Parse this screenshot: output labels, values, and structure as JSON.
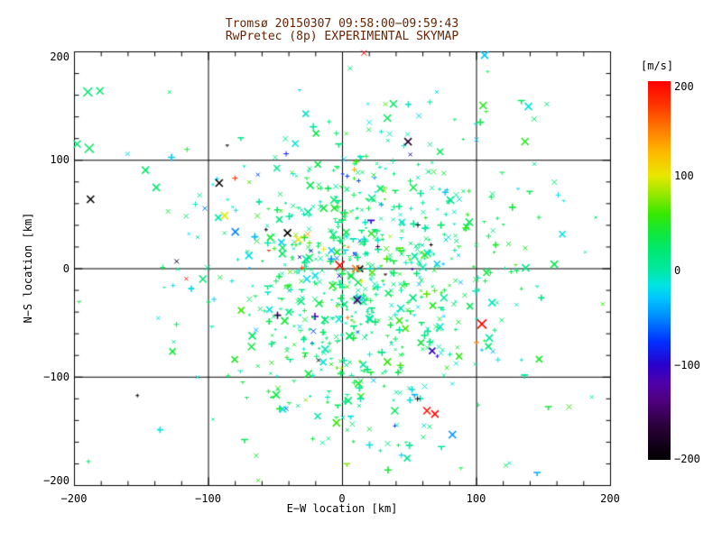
{
  "chart_data": {
    "type": "scatter",
    "title": "Tromsø 20150307 09:58:00−09:59:43",
    "subtitle": "RwPretec (8p) EXPERIMENTAL SKYMAP",
    "title_color": "#662505",
    "xlabel": "E−W location [km]",
    "ylabel": "N−S location [km]",
    "xlim": [
      -200,
      200
    ],
    "ylim": [
      -200,
      200
    ],
    "xticks": [
      -200,
      -100,
      0,
      100,
      200
    ],
    "yticks": [
      -200,
      -100,
      0,
      100,
      200
    ],
    "minor_tick_step_km": 20,
    "gridlines_km": [
      -100,
      0,
      100
    ],
    "grid": "on",
    "marker": "x",
    "colorbar": {
      "label": "[m/s]",
      "min": -200,
      "max": 200,
      "ticks": [
        200,
        100,
        0,
        -100,
        -200
      ],
      "position": "right"
    },
    "colormap_stops": [
      [
        -200,
        "#000000"
      ],
      [
        -165,
        "#2a0038"
      ],
      [
        -140,
        "#4c0078"
      ],
      [
        -120,
        "#5000a8"
      ],
      [
        -100,
        "#2a00cc"
      ],
      [
        -75,
        "#0030ff"
      ],
      [
        -50,
        "#0088ff"
      ],
      [
        -30,
        "#00c4ff"
      ],
      [
        -15,
        "#00e4e0"
      ],
      [
        0,
        "#00e8a4"
      ],
      [
        20,
        "#00e874"
      ],
      [
        40,
        "#10e83c"
      ],
      [
        60,
        "#38e800"
      ],
      [
        80,
        "#94e800"
      ],
      [
        100,
        "#e8e800"
      ],
      [
        125,
        "#ffb800"
      ],
      [
        150,
        "#ff7800"
      ],
      [
        175,
        "#ff3400"
      ],
      [
        200,
        "#ff0000"
      ]
    ],
    "notable_points": [
      [
        -190,
        163,
        22,
        5,
        "x"
      ],
      [
        -181,
        164,
        22,
        4,
        "x"
      ],
      [
        -198,
        115,
        18,
        4,
        "x"
      ],
      [
        -189,
        111,
        25,
        5,
        "x"
      ],
      [
        -188,
        64,
        -200,
        4,
        "x"
      ],
      [
        -147,
        91,
        25,
        4,
        "x"
      ],
      [
        -139,
        75,
        25,
        4,
        "x"
      ],
      [
        -116,
        110,
        45,
        3,
        "+"
      ],
      [
        -86,
        114,
        -195,
        2,
        "t"
      ],
      [
        -92,
        79,
        -200,
        4,
        "x"
      ],
      [
        -153,
        -117,
        -195,
        2,
        "+"
      ],
      [
        -32,
        165,
        -25,
        2,
        "t"
      ],
      [
        -42,
        106,
        -78,
        3,
        "+"
      ],
      [
        -88,
        49,
        98,
        4,
        "x"
      ],
      [
        -80,
        34,
        -50,
        4,
        "x"
      ],
      [
        -41,
        33,
        -200,
        4,
        "x"
      ],
      [
        -57,
        36,
        -195,
        2,
        "+"
      ],
      [
        -55,
        17,
        186,
        2,
        "t"
      ],
      [
        -14,
        18,
        100,
        3,
        "+"
      ],
      [
        -2,
        3,
        196,
        5,
        "x"
      ],
      [
        10,
        0,
        150,
        4,
        "x"
      ],
      [
        -33,
        27,
        105,
        4,
        "x"
      ],
      [
        -26,
        32,
        140,
        3,
        "x"
      ],
      [
        11,
        -29,
        -140,
        4,
        "x"
      ],
      [
        32,
        -5,
        -190,
        2,
        "t"
      ],
      [
        16,
        199,
        200,
        3,
        "x"
      ],
      [
        106,
        197,
        -28,
        4,
        "x"
      ],
      [
        104,
        -51,
        198,
        5,
        "x"
      ],
      [
        100,
        -68,
        148,
        3,
        "+"
      ],
      [
        104,
        -75,
        -30,
        2,
        "+"
      ],
      [
        63,
        -131,
        192,
        4,
        "x"
      ],
      [
        69,
        -134,
        196,
        4,
        "x"
      ],
      [
        39,
        -131,
        30,
        4,
        "x"
      ],
      [
        56,
        -120,
        -192,
        3,
        "+"
      ],
      [
        39,
        -145,
        -72,
        2,
        "+"
      ],
      [
        82,
        -153,
        -48,
        4,
        "x"
      ],
      [
        44,
        -172,
        -32,
        3,
        "+"
      ],
      [
        158,
        4,
        32,
        4,
        "x"
      ],
      [
        130,
        -2,
        36,
        3,
        "+"
      ],
      [
        161,
        68,
        -18,
        3,
        "+"
      ],
      [
        165,
        63,
        -20,
        2,
        "t"
      ],
      [
        131,
        74,
        -22,
        2,
        "t"
      ],
      [
        119,
        89,
        32,
        3,
        "t"
      ],
      [
        111,
        66,
        30,
        3,
        "+"
      ],
      [
        120,
        41,
        30,
        2,
        "t"
      ],
      [
        109,
        30,
        32,
        3,
        "+"
      ],
      [
        143,
        138,
        25,
        3,
        "x"
      ],
      [
        57,
        141,
        -25,
        3,
        "x"
      ],
      [
        38,
        152,
        25,
        4,
        "x"
      ],
      [
        20,
        135,
        -15,
        3,
        "x"
      ]
    ],
    "generated": {
      "main": {
        "count": 760,
        "seed": 20150307,
        "cx": 14,
        "cy": -16,
        "sx": 54,
        "sy": 66,
        "tilt": 0.15,
        "vmean": 20,
        "vsd": 22
      },
      "halo": {
        "count": 72,
        "seed": 958,
        "cx": 0,
        "cy": 5,
        "sx": 105,
        "sy": 100,
        "tilt": 0.0,
        "vmean": 12,
        "vsd": 30
      },
      "extreme_fractions": {
        "warm": 0.012,
        "cold": 0.02,
        "dark": 0.008
      },
      "shape_fractions": {
        "x": 0.5,
        "plus": 0.35,
        "tick": 0.15
      },
      "size_weights": [
        1.5,
        2,
        2,
        2.5,
        2.5,
        3,
        3.5,
        4
      ]
    }
  }
}
